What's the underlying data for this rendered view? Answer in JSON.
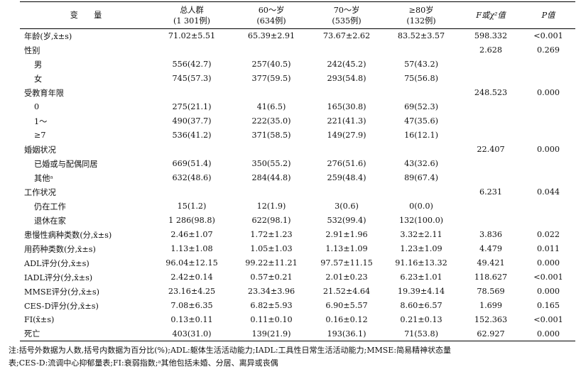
{
  "header": {
    "variable": "变　　量",
    "total": [
      "总人群",
      "(1 301例)"
    ],
    "g60": [
      "60～岁",
      "(634例)"
    ],
    "g70": [
      "70～岁",
      "(535例)"
    ],
    "g80": [
      "≥80岁",
      "(132例)"
    ],
    "fchi": "F或χ²值",
    "p": "P值"
  },
  "rows": [
    {
      "label": "年龄(岁,x̄±s)",
      "sub": false,
      "cells": [
        "71.02±5.51",
        "65.39±2.91",
        "73.67±2.62",
        "83.52±3.57",
        "598.332",
        "<0.001"
      ]
    },
    {
      "label": "性别",
      "sub": false,
      "cells": [
        "",
        "",
        "",
        "",
        "2.628",
        "0.269"
      ]
    },
    {
      "label": "男",
      "sub": true,
      "cells": [
        "556(42.7)",
        "257(40.5)",
        "242(45.2)",
        "57(43.2)",
        "",
        ""
      ]
    },
    {
      "label": "女",
      "sub": true,
      "cells": [
        "745(57.3)",
        "377(59.5)",
        "293(54.8)",
        "75(56.8)",
        "",
        ""
      ]
    },
    {
      "label": "受教育年限",
      "sub": false,
      "cells": [
        "",
        "",
        "",
        "",
        "248.523",
        "0.000"
      ]
    },
    {
      "label": "0",
      "sub": true,
      "cells": [
        "275(21.1)",
        "41(6.5)",
        "165(30.8)",
        "69(52.3)",
        "",
        ""
      ]
    },
    {
      "label": "1～",
      "sub": true,
      "cells": [
        "490(37.7)",
        "222(35.0)",
        "221(41.3)",
        "47(35.6)",
        "",
        ""
      ]
    },
    {
      "label": "≥7",
      "sub": true,
      "cells": [
        "536(41.2)",
        "371(58.5)",
        "149(27.9)",
        "16(12.1)",
        "",
        ""
      ]
    },
    {
      "label": "婚姻状况",
      "sub": false,
      "cells": [
        "",
        "",
        "",
        "",
        "22.407",
        "0.000"
      ]
    },
    {
      "label": "已婚或与配偶同居",
      "sub": true,
      "cells": [
        "669(51.4)",
        "350(55.2)",
        "276(51.6)",
        "43(32.6)",
        "",
        ""
      ]
    },
    {
      "label": "其他ᵃ",
      "sub": true,
      "cells": [
        "632(48.6)",
        "284(44.8)",
        "259(48.4)",
        "89(67.4)",
        "",
        ""
      ]
    },
    {
      "label": "工作状况",
      "sub": false,
      "cells": [
        "",
        "",
        "",
        "",
        "6.231",
        "0.044"
      ]
    },
    {
      "label": "仍在工作",
      "sub": true,
      "cells": [
        "15(1.2)",
        "12(1.9)",
        "3(0.6)",
        "0(0.0)",
        "",
        ""
      ]
    },
    {
      "label": "退休在家",
      "sub": true,
      "cells": [
        "1 286(98.8)",
        "622(98.1)",
        "532(99.4)",
        "132(100.0)",
        "",
        ""
      ]
    },
    {
      "label": "患慢性病种类数(分,x̄±s)",
      "sub": false,
      "cells": [
        "2.46±1.07",
        "1.72±1.23",
        "2.91±1.96",
        "3.32±2.11",
        "3.836",
        "0.022"
      ]
    },
    {
      "label": "用药种类数(分,x̄±s)",
      "sub": false,
      "cells": [
        "1.13±1.08",
        "1.05±1.03",
        "1.13±1.09",
        "1.23±1.09",
        "4.479",
        "0.011"
      ]
    },
    {
      "label": "ADL评分(分,x̄±s)",
      "sub": false,
      "cells": [
        "96.04±12.15",
        "99.22±11.21",
        "97.57±11.15",
        "91.16±13.32",
        "49.421",
        "0.000"
      ]
    },
    {
      "label": "IADL评分(分,x̄±s)",
      "sub": false,
      "cells": [
        "2.42±0.14",
        "0.57±0.21",
        "2.01±0.23",
        "6.23±1.01",
        "118.627",
        "<0.001"
      ]
    },
    {
      "label": "MMSE评分(分,x̄±s)",
      "sub": false,
      "cells": [
        "23.16±4.25",
        "23.34±3.96",
        "21.52±4.64",
        "19.39±4.14",
        "78.569",
        "0.000"
      ]
    },
    {
      "label": "CES-D评分(分,x̄±s)",
      "sub": false,
      "cells": [
        "7.08±6.35",
        "6.82±5.93",
        "6.90±5.57",
        "8.60±6.57",
        "1.699",
        "0.165"
      ]
    },
    {
      "label": "FI(x̄±s)",
      "sub": false,
      "cells": [
        "0.13±0.11",
        "0.11±0.10",
        "0.16±0.12",
        "0.21±0.13",
        "152.363",
        "<0.001"
      ]
    },
    {
      "label": "死亡",
      "sub": false,
      "cells": [
        "403(31.0)",
        "139(21.9)",
        "193(36.1)",
        "71(53.8)",
        "62.927",
        "0.000"
      ]
    }
  ],
  "note": {
    "line1": "注:括号外数据为人数,括号内数据为百分比(%);ADL:躯体生活活动能力;IADL:工具性日常生活活动能力;MMSE:简易精神状态量",
    "line2": "表;CES-D:流调中心抑郁量表;FI:衰弱指数;ᵃ其他包括未婚、分居、离异或丧偶"
  }
}
